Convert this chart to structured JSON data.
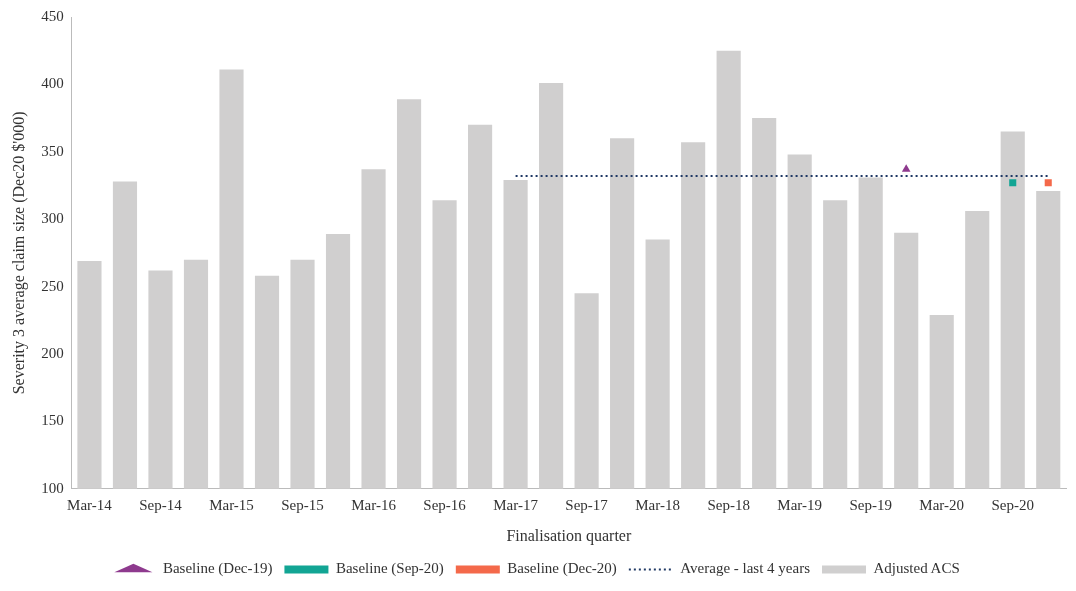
{
  "chart_data": {
    "type": "bar",
    "xlabel": "Finalisation quarter",
    "ylabel": "Severity 3 average claim size (Dec20 $'000)",
    "categories": [
      "Mar-14",
      null,
      "Sep-14",
      null,
      "Mar-15",
      null,
      "Sep-15",
      null,
      "Mar-16",
      null,
      "Sep-16",
      null,
      "Mar-17",
      null,
      "Sep-17",
      null,
      "Mar-18",
      null,
      "Sep-18",
      null,
      "Mar-19",
      null,
      "Sep-19",
      null,
      "Mar-20",
      null,
      "Sep-20",
      null
    ],
    "series": [
      {
        "name": "Adjusted ACS",
        "color": "#d0cfcf",
        "values": [
          269,
          328,
          262,
          270,
          411,
          258,
          270,
          289,
          337,
          389,
          314,
          370,
          329,
          401,
          245,
          360,
          285,
          357,
          425,
          375,
          348,
          314,
          331,
          290,
          229,
          306,
          365,
          321
        ]
      },
      {
        "name": "Baseline (Dec-19)",
        "type": "scatter",
        "marker": "triangle",
        "color": "#8e3a8e",
        "values": [
          null,
          null,
          null,
          null,
          null,
          null,
          null,
          null,
          null,
          null,
          null,
          null,
          null,
          null,
          null,
          null,
          null,
          null,
          null,
          null,
          null,
          null,
          null,
          337,
          null,
          null,
          null,
          null
        ]
      },
      {
        "name": "Baseline (Sep-20)",
        "type": "scatter",
        "marker": "square",
        "color": "#12a594",
        "values": [
          null,
          null,
          null,
          null,
          null,
          null,
          null,
          null,
          null,
          null,
          null,
          null,
          null,
          null,
          null,
          null,
          null,
          null,
          null,
          null,
          null,
          null,
          null,
          null,
          null,
          null,
          327,
          null
        ]
      },
      {
        "name": "Baseline (Dec-20)",
        "type": "scatter",
        "marker": "square",
        "color": "#f4694a",
        "values": [
          null,
          null,
          null,
          null,
          null,
          null,
          null,
          null,
          null,
          null,
          null,
          null,
          null,
          null,
          null,
          null,
          null,
          null,
          null,
          null,
          null,
          null,
          null,
          null,
          null,
          null,
          null,
          327
        ]
      },
      {
        "name": "Average - last 4 years",
        "type": "line",
        "marker": "none",
        "line_style": "dotted",
        "color": "#1f3864",
        "values": [
          null,
          null,
          null,
          null,
          null,
          null,
          null,
          null,
          null,
          null,
          null,
          null,
          332,
          332,
          332,
          332,
          332,
          332,
          332,
          332,
          332,
          332,
          332,
          332,
          332,
          332,
          332,
          332
        ]
      }
    ],
    "ylim": [
      100,
      450
    ],
    "yticks": [
      100,
      150,
      200,
      250,
      300,
      350,
      400,
      450
    ],
    "grid": false,
    "legend": "bottom"
  }
}
